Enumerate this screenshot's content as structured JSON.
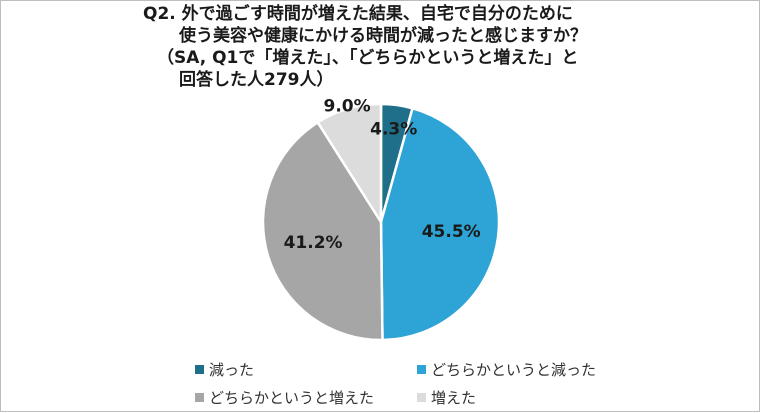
{
  "title": {
    "line1": "Q2. 外で過ごす時間が増えた結果、自宅で自分のために",
    "line2": "使う美容や健康にかける時間が減ったと感じますか？",
    "line3": "（SA, Q1で「増えた」、「どちらかというと増えた」と",
    "line4": "回答した人279人）"
  },
  "chart_data": {
    "type": "pie",
    "title": "Q2. 外で過ごす時間が増えた結果、自宅で自分のために使う美容や健康にかける時間が減ったと感じますか？（SA, Q1で「増えた」、「どちらかというと増えた」と回答した人279人）",
    "series": [
      {
        "name": "減った",
        "value": 4.3,
        "label": "4.3%",
        "color": "#1f6f8b"
      },
      {
        "name": "どちらかというと減った",
        "value": 45.5,
        "label": "45.5%",
        "color": "#2ea3d6"
      },
      {
        "name": "どちらかというと増えた",
        "value": 41.2,
        "label": "41.2%",
        "color": "#a6a6a6"
      },
      {
        "name": "増えた",
        "value": 9.0,
        "label": "9.0%",
        "color": "#dcdcdc"
      }
    ],
    "start_angle": "12 o'clock",
    "direction": "clockwise",
    "legend_position": "bottom"
  }
}
